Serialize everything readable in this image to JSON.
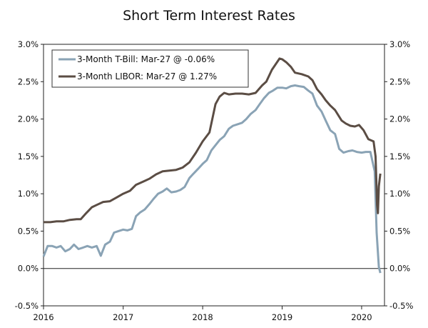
{
  "chart_data": {
    "type": "line",
    "title": "Short Term Interest Rates",
    "xlabel": "",
    "ylabel": "",
    "x_ticks": [
      "2016",
      "2017",
      "2018",
      "2019",
      "2020"
    ],
    "xlim": [
      "2016-01-01",
      "2020-04-15"
    ],
    "ylim": [
      -0.5,
      3.0
    ],
    "y_tick_values": [
      -0.5,
      0.0,
      0.5,
      1.0,
      1.5,
      2.0,
      2.5,
      3.0
    ],
    "y_tick_labels": [
      "-0.5%",
      "0.0%",
      "0.5%",
      "1.0%",
      "1.5%",
      "2.0%",
      "2.5%",
      "3.0%"
    ],
    "grid": false,
    "zero_line": true,
    "legend_position": "top-left",
    "series": [
      {
        "name": "3-Month T-Bill: Mar-27 @ -0.06%",
        "color": "#8aa3b5",
        "points": [
          [
            "2016-01-01",
            0.16
          ],
          [
            "2016-01-20",
            0.3
          ],
          [
            "2016-02-10",
            0.3
          ],
          [
            "2016-03-01",
            0.28
          ],
          [
            "2016-03-20",
            0.3
          ],
          [
            "2016-04-10",
            0.23
          ],
          [
            "2016-05-01",
            0.26
          ],
          [
            "2016-05-20",
            0.32
          ],
          [
            "2016-06-10",
            0.26
          ],
          [
            "2016-07-01",
            0.28
          ],
          [
            "2016-07-20",
            0.3
          ],
          [
            "2016-08-10",
            0.28
          ],
          [
            "2016-09-01",
            0.3
          ],
          [
            "2016-09-20",
            0.17
          ],
          [
            "2016-10-10",
            0.32
          ],
          [
            "2016-11-01",
            0.36
          ],
          [
            "2016-11-20",
            0.48
          ],
          [
            "2016-12-10",
            0.5
          ],
          [
            "2017-01-01",
            0.52
          ],
          [
            "2017-01-20",
            0.51
          ],
          [
            "2017-02-10",
            0.53
          ],
          [
            "2017-03-01",
            0.7
          ],
          [
            "2017-03-20",
            0.75
          ],
          [
            "2017-04-10",
            0.79
          ],
          [
            "2017-05-01",
            0.86
          ],
          [
            "2017-05-20",
            0.93
          ],
          [
            "2017-06-10",
            1.0
          ],
          [
            "2017-07-01",
            1.03
          ],
          [
            "2017-07-20",
            1.07
          ],
          [
            "2017-08-10",
            1.02
          ],
          [
            "2017-09-01",
            1.03
          ],
          [
            "2017-09-20",
            1.05
          ],
          [
            "2017-10-10",
            1.09
          ],
          [
            "2017-11-01",
            1.21
          ],
          [
            "2017-11-20",
            1.27
          ],
          [
            "2017-12-10",
            1.33
          ],
          [
            "2018-01-01",
            1.4
          ],
          [
            "2018-01-20",
            1.45
          ],
          [
            "2018-02-10",
            1.58
          ],
          [
            "2018-03-01",
            1.65
          ],
          [
            "2018-03-20",
            1.72
          ],
          [
            "2018-04-10",
            1.77
          ],
          [
            "2018-05-01",
            1.87
          ],
          [
            "2018-05-20",
            1.91
          ],
          [
            "2018-06-10",
            1.93
          ],
          [
            "2018-07-01",
            1.95
          ],
          [
            "2018-07-20",
            2.0
          ],
          [
            "2018-08-10",
            2.07
          ],
          [
            "2018-09-01",
            2.12
          ],
          [
            "2018-09-20",
            2.2
          ],
          [
            "2018-10-10",
            2.28
          ],
          [
            "2018-11-01",
            2.35
          ],
          [
            "2018-11-20",
            2.38
          ],
          [
            "2018-12-10",
            2.42
          ],
          [
            "2019-01-01",
            2.42
          ],
          [
            "2019-01-20",
            2.41
          ],
          [
            "2019-02-10",
            2.44
          ],
          [
            "2019-03-01",
            2.45
          ],
          [
            "2019-03-20",
            2.44
          ],
          [
            "2019-04-10",
            2.43
          ],
          [
            "2019-05-01",
            2.38
          ],
          [
            "2019-05-20",
            2.34
          ],
          [
            "2019-06-10",
            2.18
          ],
          [
            "2019-07-01",
            2.1
          ],
          [
            "2019-07-20",
            1.98
          ],
          [
            "2019-08-10",
            1.85
          ],
          [
            "2019-09-01",
            1.8
          ],
          [
            "2019-09-20",
            1.6
          ],
          [
            "2019-10-10",
            1.55
          ],
          [
            "2019-11-01",
            1.57
          ],
          [
            "2019-11-20",
            1.58
          ],
          [
            "2019-12-10",
            1.56
          ],
          [
            "2020-01-01",
            1.55
          ],
          [
            "2020-01-20",
            1.56
          ],
          [
            "2020-02-10",
            1.56
          ],
          [
            "2020-03-01",
            1.3
          ],
          [
            "2020-03-10",
            0.48
          ],
          [
            "2020-03-20",
            0.02
          ],
          [
            "2020-03-27",
            -0.06
          ]
        ]
      },
      {
        "name": "3-Month LIBOR: Mar-27 @ 1.27%",
        "color": "#5b4d44",
        "points": [
          [
            "2016-01-01",
            0.62
          ],
          [
            "2016-02-01",
            0.62
          ],
          [
            "2016-03-01",
            0.63
          ],
          [
            "2016-04-01",
            0.63
          ],
          [
            "2016-05-01",
            0.65
          ],
          [
            "2016-06-01",
            0.66
          ],
          [
            "2016-06-20",
            0.66
          ],
          [
            "2016-07-15",
            0.74
          ],
          [
            "2016-08-10",
            0.82
          ],
          [
            "2016-09-01",
            0.85
          ],
          [
            "2016-10-01",
            0.89
          ],
          [
            "2016-11-01",
            0.9
          ],
          [
            "2016-12-01",
            0.95
          ],
          [
            "2017-01-01",
            1.0
          ],
          [
            "2017-02-01",
            1.04
          ],
          [
            "2017-03-01",
            1.12
          ],
          [
            "2017-04-01",
            1.16
          ],
          [
            "2017-05-01",
            1.2
          ],
          [
            "2017-06-01",
            1.26
          ],
          [
            "2017-07-01",
            1.3
          ],
          [
            "2017-08-01",
            1.31
          ],
          [
            "2017-09-01",
            1.32
          ],
          [
            "2017-10-01",
            1.35
          ],
          [
            "2017-11-01",
            1.42
          ],
          [
            "2017-12-01",
            1.55
          ],
          [
            "2018-01-01",
            1.7
          ],
          [
            "2018-02-01",
            1.82
          ],
          [
            "2018-03-01",
            2.2
          ],
          [
            "2018-03-20",
            2.3
          ],
          [
            "2018-04-10",
            2.35
          ],
          [
            "2018-05-01",
            2.33
          ],
          [
            "2018-06-01",
            2.34
          ],
          [
            "2018-07-01",
            2.34
          ],
          [
            "2018-08-01",
            2.33
          ],
          [
            "2018-09-01",
            2.35
          ],
          [
            "2018-10-01",
            2.45
          ],
          [
            "2018-10-20",
            2.5
          ],
          [
            "2018-11-15",
            2.66
          ],
          [
            "2018-12-20",
            2.81
          ],
          [
            "2019-01-01",
            2.8
          ],
          [
            "2019-01-20",
            2.76
          ],
          [
            "2019-02-10",
            2.7
          ],
          [
            "2019-03-01",
            2.62
          ],
          [
            "2019-04-01",
            2.6
          ],
          [
            "2019-05-01",
            2.57
          ],
          [
            "2019-05-20",
            2.52
          ],
          [
            "2019-06-10",
            2.4
          ],
          [
            "2019-07-01",
            2.33
          ],
          [
            "2019-07-20",
            2.25
          ],
          [
            "2019-08-10",
            2.18
          ],
          [
            "2019-09-01",
            2.12
          ],
          [
            "2019-10-01",
            1.98
          ],
          [
            "2019-10-20",
            1.94
          ],
          [
            "2019-11-10",
            1.91
          ],
          [
            "2019-12-01",
            1.9
          ],
          [
            "2019-12-20",
            1.92
          ],
          [
            "2020-01-10",
            1.85
          ],
          [
            "2020-02-01",
            1.73
          ],
          [
            "2020-02-25",
            1.7
          ],
          [
            "2020-03-05",
            1.5
          ],
          [
            "2020-03-12",
            0.85
          ],
          [
            "2020-03-16",
            0.74
          ],
          [
            "2020-03-20",
            1.1
          ],
          [
            "2020-03-24",
            1.2
          ],
          [
            "2020-03-27",
            1.27
          ]
        ]
      }
    ]
  }
}
